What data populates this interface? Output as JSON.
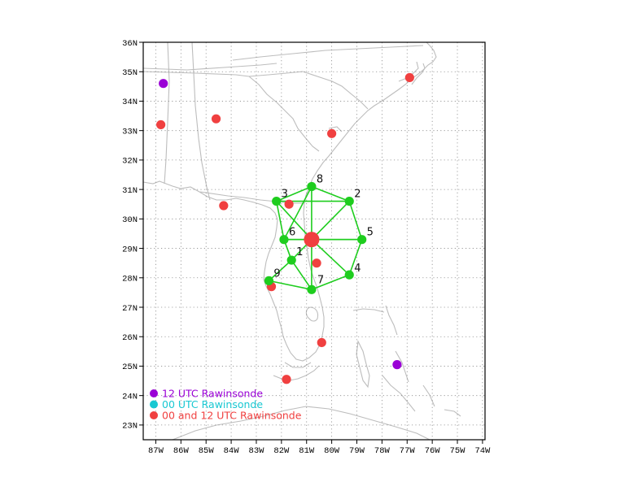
{
  "map": {
    "x_ticks": [
      "87W",
      "86W",
      "85W",
      "84W",
      "83W",
      "82W",
      "81W",
      "80W",
      "79W",
      "78W",
      "77W",
      "76W",
      "75W",
      "74W"
    ],
    "y_ticks": [
      "23N",
      "24N",
      "25N",
      "26N",
      "27N",
      "28N",
      "29N",
      "30N",
      "31N",
      "32N",
      "33N",
      "34N",
      "35N",
      "36N"
    ],
    "lon_range": [
      -87.5,
      -73.9
    ],
    "lat_range": [
      22.5,
      36.0
    ],
    "grid": "dotted"
  },
  "legend": {
    "items": [
      {
        "label": "12 UTC Rawinsonde",
        "color": "#9a00d6"
      },
      {
        "label": "00 UTC Rawinsonde",
        "color": "#19c8d2"
      },
      {
        "label": "00 and 12 UTC Rawinsonde",
        "color": "#f04040"
      }
    ]
  },
  "colors": {
    "network": "#1ecd1e",
    "rawinsonde_12": "#9a00d6",
    "rawinsonde_both": "#f04040",
    "coast": "#bdbdbd"
  },
  "network": {
    "center": {
      "lon": -80.8,
      "lat": 29.3
    },
    "sites": [
      {
        "id": "1",
        "lon": -81.6,
        "lat": 28.6
      },
      {
        "id": "2",
        "lon": -79.3,
        "lat": 30.6
      },
      {
        "id": "3",
        "lon": -82.2,
        "lat": 30.6
      },
      {
        "id": "4",
        "lon": -79.3,
        "lat": 28.1
      },
      {
        "id": "5",
        "lon": -78.8,
        "lat": 29.3
      },
      {
        "id": "6",
        "lon": -81.9,
        "lat": 29.3
      },
      {
        "id": "7",
        "lon": -80.8,
        "lat": 27.6
      },
      {
        "id": "8",
        "lon": -80.8,
        "lat": 31.1
      },
      {
        "id": "9",
        "lon": -82.5,
        "lat": 27.9
      }
    ],
    "links": [
      [
        "C",
        "1"
      ],
      [
        "C",
        "2"
      ],
      [
        "C",
        "3"
      ],
      [
        "C",
        "4"
      ],
      [
        "C",
        "5"
      ],
      [
        "C",
        "6"
      ],
      [
        "C",
        "7"
      ],
      [
        "C",
        "8"
      ],
      [
        "3",
        "2"
      ],
      [
        "3",
        "8"
      ],
      [
        "8",
        "2"
      ],
      [
        "8",
        "6"
      ],
      [
        "2",
        "5"
      ],
      [
        "5",
        "4"
      ],
      [
        "4",
        "7"
      ],
      [
        "6",
        "3"
      ],
      [
        "6",
        "1"
      ],
      [
        "1",
        "9"
      ],
      [
        "9",
        "7"
      ],
      [
        "1",
        "7"
      ],
      [
        "6",
        "5"
      ]
    ]
  },
  "rawinsondes": [
    {
      "type": "12",
      "lon": -86.7,
      "lat": 34.6
    },
    {
      "type": "12",
      "lon": -77.4,
      "lat": 25.05
    },
    {
      "type": "both",
      "lon": -86.8,
      "lat": 33.2
    },
    {
      "type": "both",
      "lon": -84.6,
      "lat": 33.4
    },
    {
      "type": "both",
      "lon": -80.0,
      "lat": 32.9
    },
    {
      "type": "both",
      "lon": -76.9,
      "lat": 34.8
    },
    {
      "type": "both",
      "lon": -84.3,
      "lat": 30.45
    },
    {
      "type": "both",
      "lon": -81.7,
      "lat": 30.5
    },
    {
      "type": "both",
      "lon": -80.6,
      "lat": 28.5
    },
    {
      "type": "both",
      "lon": -82.4,
      "lat": 27.7
    },
    {
      "type": "both",
      "lon": -80.4,
      "lat": 25.8
    },
    {
      "type": "both",
      "lon": -81.8,
      "lat": 24.55
    }
  ]
}
